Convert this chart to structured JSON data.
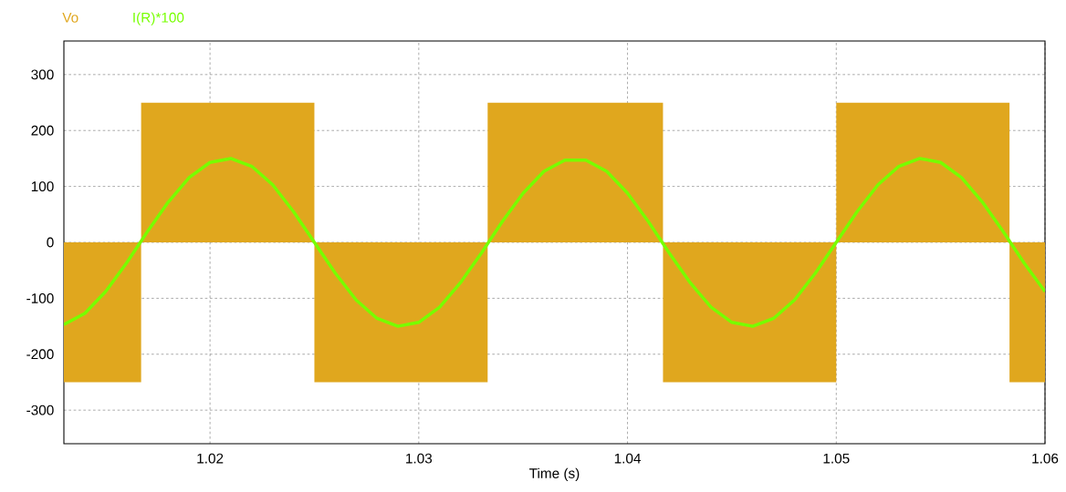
{
  "chart_data": {
    "type": "line",
    "xlabel": "Time (s)",
    "xlim": [
      1.013,
      1.06
    ],
    "xticks": [
      1.02,
      1.03,
      1.04,
      1.05,
      1.06
    ],
    "ylim": [
      -360,
      360
    ],
    "yticks": [
      -300,
      -200,
      -100,
      0,
      100,
      200,
      300
    ],
    "grid": true,
    "line_style": "solid",
    "series": [
      {
        "name": "Vo",
        "type": "area",
        "color": "#e0a71e",
        "x": [
          1.013,
          1.0167,
          1.0167,
          1.025,
          1.025,
          1.0333,
          1.0333,
          1.0417,
          1.0417,
          1.05,
          1.05,
          1.0583,
          1.0583,
          1.06
        ],
        "values": [
          -250,
          -250,
          250,
          250,
          -250,
          -250,
          250,
          250,
          -250,
          -250,
          250,
          250,
          -250,
          -250
        ]
      },
      {
        "name": "I(R)*100",
        "color": "#77ff00",
        "x": [
          1.013,
          1.014,
          1.015,
          1.016,
          1.017,
          1.018,
          1.019,
          1.02,
          1.021,
          1.022,
          1.023,
          1.024,
          1.025,
          1.026,
          1.027,
          1.028,
          1.029,
          1.03,
          1.031,
          1.032,
          1.033,
          1.034,
          1.035,
          1.036,
          1.037,
          1.038,
          1.039,
          1.04,
          1.041,
          1.042,
          1.043,
          1.044,
          1.045,
          1.046,
          1.047,
          1.048,
          1.049,
          1.05,
          1.051,
          1.052,
          1.053,
          1.054,
          1.055,
          1.056,
          1.057,
          1.058,
          1.059,
          1.06
        ],
        "values": [
          -147,
          -127,
          -88,
          -37,
          19,
          72,
          116,
          143,
          150,
          136,
          103,
          55,
          0,
          -55,
          -103,
          -136,
          -150,
          -143,
          -116,
          -72,
          -19,
          37,
          88,
          127,
          147,
          147,
          127,
          88,
          37,
          -19,
          -72,
          -116,
          -143,
          -150,
          -136,
          -103,
          -55,
          0,
          55,
          103,
          136,
          150,
          143,
          116,
          72,
          19,
          -37,
          -88
        ]
      }
    ]
  }
}
